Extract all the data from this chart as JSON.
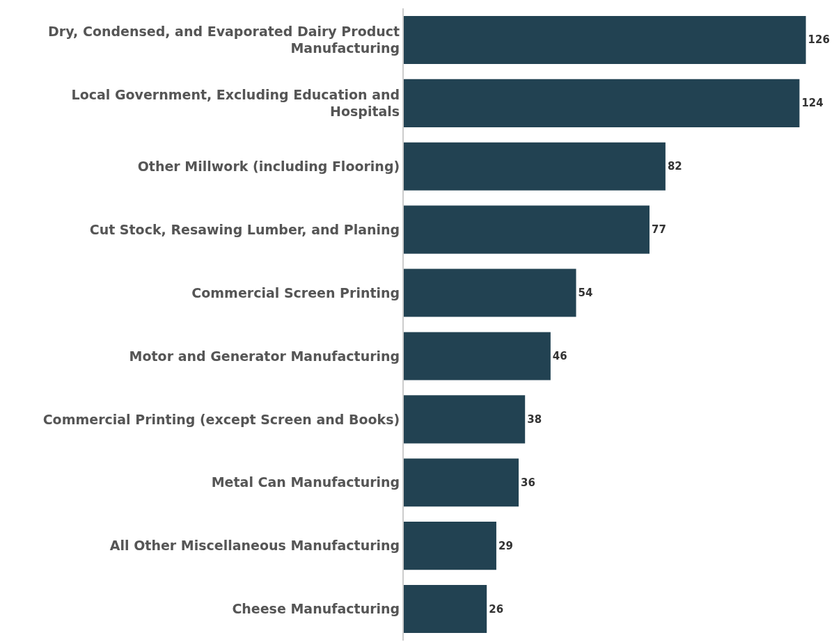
{
  "chart_data": {
    "type": "bar",
    "orientation": "horizontal",
    "categories": [
      "Dry, Condensed, and Evaporated Dairy Product Manufacturing",
      "Local Government, Excluding Education and Hospitals",
      "Other Millwork (including Flooring)",
      "Cut Stock, Resawing Lumber, and Planing",
      "Commercial Screen Printing",
      "Motor and Generator Manufacturing",
      "Commercial Printing (except Screen and Books)",
      "Metal Can Manufacturing",
      "All Other Miscellaneous Manufacturing",
      "Cheese Manufacturing"
    ],
    "values": [
      126,
      124,
      82,
      77,
      54,
      46,
      38,
      36,
      29,
      26
    ],
    "color": "#224252",
    "data_labels": true,
    "tick_labels": "y"
  }
}
